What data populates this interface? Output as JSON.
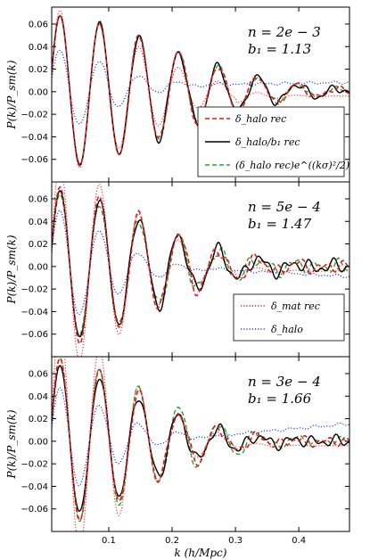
{
  "chart_data": [
    {
      "type": "line",
      "annotation": [
        "n = 2e − 3",
        "b₁ = 1.13"
      ],
      "ylabel": "P(k)/P_sm(k)",
      "xlim": [
        0.01,
        0.48
      ],
      "ylim": [
        -0.08,
        0.075
      ],
      "yticks": [
        "0.06",
        "0.04",
        "0.02",
        "0.00",
        "−0.02",
        "−0.04",
        "−0.06"
      ],
      "legend": [
        "δ_halo rec",
        "δ_halo/b₁ rec",
        "(δ_halo rec)e^((kσ)²/2)"
      ],
      "amp_black": 1.0,
      "amp_red": 1.0,
      "amp_green": 1.0,
      "damp_black": 0.26,
      "damp_red": 0.26,
      "damp_green": 0.26,
      "noise_black": 0.004,
      "noise_red": 0.003,
      "noise_green": 0.002,
      "dot_red_amp": 1.08,
      "dot_red_damp": 0.19,
      "dot_blue_amp": 0.55,
      "dot_blue_offset": 0.006,
      "dot_blue_slope": 0.01
    },
    {
      "type": "line",
      "annotation": [
        "n = 5e − 4",
        "b₁ = 1.47"
      ],
      "ylabel": "P(k)/P_sm(k)",
      "xlim": [
        0.01,
        0.48
      ],
      "ylim": [
        -0.08,
        0.075
      ],
      "yticks": [
        "0.06",
        "0.04",
        "0.02",
        "0.00",
        "−0.02",
        "−0.04",
        "−0.06"
      ],
      "legend": [
        "δ_mat rec",
        "δ_halo"
      ],
      "amp_black": 1.0,
      "amp_red": 1.05,
      "amp_green": 0.95,
      "damp_black": 0.22,
      "damp_red": 0.22,
      "damp_green": 0.22,
      "noise_black": 0.007,
      "noise_red": 0.006,
      "noise_green": 0.007,
      "dot_red_amp": 1.35,
      "dot_red_damp": 0.18,
      "dot_blue_amp": 0.75,
      "dot_blue_offset": -0.002,
      "dot_blue_slope": -0.03
    },
    {
      "type": "line",
      "annotation": [
        "n = 3e − 4",
        "b₁ = 1.66"
      ],
      "ylabel": "P(k)/P_sm(k)",
      "xlabel": "k (h/Mpc)",
      "xlim": [
        0.01,
        0.48
      ],
      "ylim": [
        -0.08,
        0.075
      ],
      "xticks": [
        "0.1",
        "0.2",
        "0.3",
        "0.4"
      ],
      "yticks": [
        "0.06",
        "0.04",
        "0.02",
        "0.00",
        "−0.02",
        "−0.04",
        "−0.06"
      ],
      "amp_black": 1.0,
      "amp_red": 1.1,
      "amp_green": 1.1,
      "damp_black": 0.2,
      "damp_red": 0.2,
      "damp_green": 0.22,
      "noise_black": 0.006,
      "noise_red": 0.005,
      "noise_green": 0.004,
      "dot_red_amp": 1.55,
      "dot_red_damp": 0.17,
      "dot_blue_amp": 0.7,
      "dot_blue_offset": 0.004,
      "dot_blue_slope": 0.05
    }
  ],
  "colors": {
    "red": "#e41a1c",
    "black": "#000000",
    "green": "#2ca02c",
    "blue": "#1f3fd6"
  }
}
